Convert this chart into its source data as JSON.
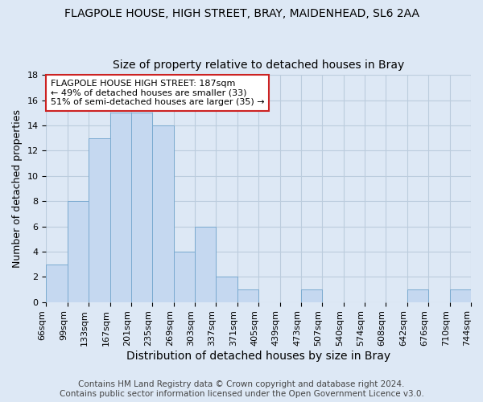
{
  "title": "FLAGPOLE HOUSE, HIGH STREET, BRAY, MAIDENHEAD, SL6 2AA",
  "subtitle": "Size of property relative to detached houses in Bray",
  "xlabel": "Distribution of detached houses by size in Bray",
  "ylabel": "Number of detached properties",
  "bar_values": [
    3,
    8,
    13,
    15,
    15,
    14,
    4,
    6,
    2,
    1,
    0,
    0,
    1,
    0,
    0,
    0,
    0,
    1,
    0,
    1
  ],
  "bin_labels": [
    "66sqm",
    "99sqm",
    "133sqm",
    "167sqm",
    "201sqm",
    "235sqm",
    "269sqm",
    "303sqm",
    "337sqm",
    "371sqm",
    "405sqm",
    "439sqm",
    "473sqm",
    "507sqm",
    "540sqm",
    "574sqm",
    "608sqm",
    "642sqm",
    "676sqm",
    "710sqm",
    "744sqm"
  ],
  "bar_color": "#c5d8f0",
  "bar_edge_color": "#7aaad0",
  "annotation_text": "FLAGPOLE HOUSE HIGH STREET: 187sqm\n← 49% of detached houses are smaller (33)\n51% of semi-detached houses are larger (35) →",
  "annotation_box_color": "#ffffff",
  "annotation_box_edge_color": "#cc2222",
  "ylim": [
    0,
    18
  ],
  "yticks": [
    0,
    2,
    4,
    6,
    8,
    10,
    12,
    14,
    16,
    18
  ],
  "grid_color": "#bbccdd",
  "bg_color": "#dde8f5",
  "footnote": "Contains HM Land Registry data © Crown copyright and database right 2024.\nContains public sector information licensed under the Open Government Licence v3.0.",
  "title_fontsize": 10,
  "subtitle_fontsize": 10,
  "xlabel_fontsize": 10,
  "ylabel_fontsize": 9,
  "tick_fontsize": 8,
  "annot_fontsize": 8,
  "footnote_fontsize": 7.5
}
